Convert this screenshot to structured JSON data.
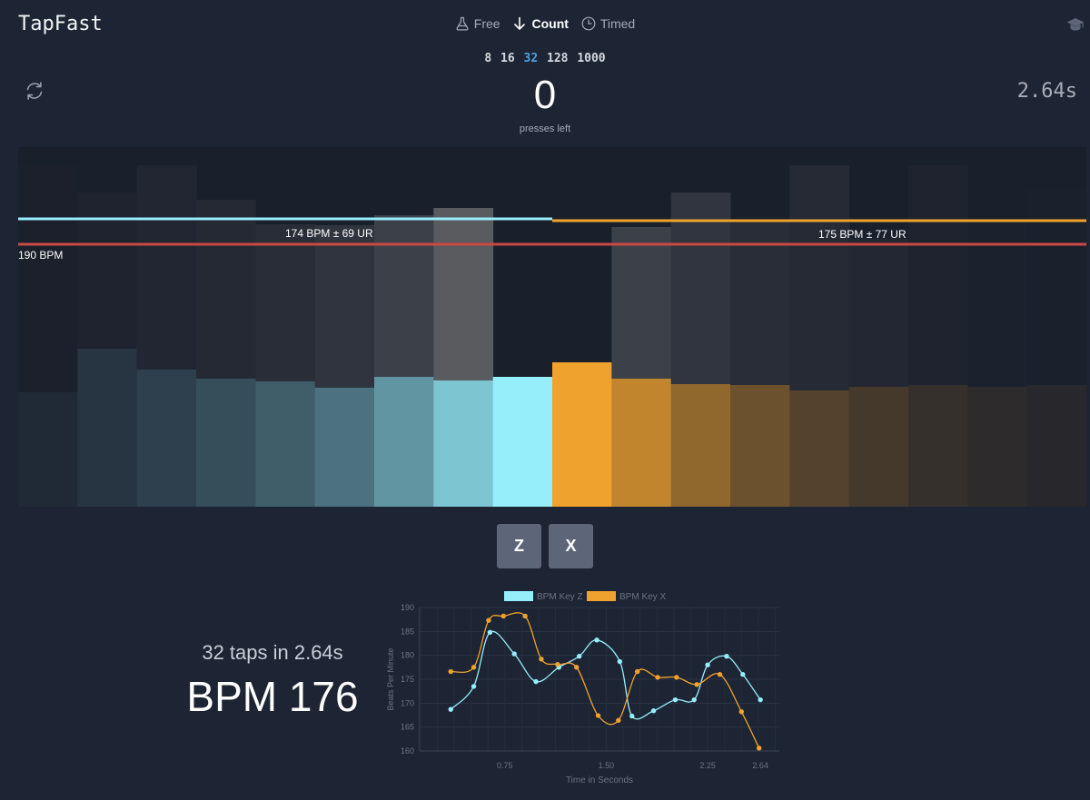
{
  "app": {
    "title": "TapFast"
  },
  "modes": [
    {
      "label": "Free",
      "icon": "flask-icon",
      "active": false
    },
    {
      "label": "Count",
      "icon": "arrow-down-icon",
      "active": true
    },
    {
      "label": "Timed",
      "icon": "clock-icon",
      "active": false
    }
  ],
  "tap_counts": {
    "options": [
      "8",
      "16",
      "32",
      "128",
      "1000"
    ],
    "selected": "32"
  },
  "counter": {
    "value": "0",
    "label": "presses left"
  },
  "timer": {
    "value": "2.64s"
  },
  "tap_visualizer": {
    "left_label": "174 BPM ± 69 UR",
    "right_label": "175 BPM ± 77 UR",
    "target_label": "190 BPM",
    "colors": {
      "key_z": "#97eefb",
      "key_x": "#f0a22e",
      "target": "#c94a44",
      "gray": "#8c8c89"
    },
    "z_bars": {
      "gray_levels": [
        0.005,
        0.04,
        0.06,
        0.09,
        0.13,
        0.19,
        0.3,
        0.55
      ],
      "key_fill_levels": [
        0.05,
        0.1,
        0.16,
        0.22,
        0.3,
        0.4,
        0.57,
        0.8,
        1.0
      ]
    },
    "x_bars": {
      "gray_levels": [
        0.55,
        0.3,
        0.2,
        0.13,
        0.1,
        0.07,
        0.04,
        0.02,
        0.01
      ],
      "key_fill_levels": [
        1.0,
        0.78,
        0.55,
        0.38,
        0.27,
        0.2,
        0.13,
        0.09,
        0.06
      ]
    }
  },
  "keys": [
    {
      "label": "Z"
    },
    {
      "label": "X"
    }
  ],
  "summary": {
    "taps_text": "32 taps in 2.64s",
    "bpm_text": "BPM 176"
  },
  "chart_data": {
    "type": "line",
    "title": "",
    "xlabel": "Time in Seconds",
    "ylabel": "Beats Per Minute",
    "xlim": [
      0.35,
      2.64
    ],
    "ylim": [
      160,
      190
    ],
    "x_ticks": [
      "0.75",
      "1.50",
      "2.25",
      "2.64"
    ],
    "y_ticks": [
      "160",
      "165",
      "170",
      "175",
      "180",
      "185",
      "190"
    ],
    "legend_position": "top",
    "grid": true,
    "series": [
      {
        "name": "BPM Key Z",
        "color": "#97eefb",
        "x": [
          0.35,
          0.52,
          0.64,
          0.82,
          0.98,
          1.15,
          1.3,
          1.43,
          1.6,
          1.69,
          1.85,
          2.01,
          2.15,
          2.25,
          2.39,
          2.51,
          2.64
        ],
        "y": [
          168.7,
          173.5,
          184.8,
          180.3,
          174.5,
          177.5,
          179.8,
          183.2,
          178.7,
          167.3,
          168.4,
          170.7,
          170.7,
          178.0,
          179.8,
          176.0,
          170.7
        ]
      },
      {
        "name": "BPM Key X",
        "color": "#f0a22e",
        "x": [
          0.35,
          0.52,
          0.63,
          0.74,
          0.9,
          1.02,
          1.14,
          1.28,
          1.44,
          1.59,
          1.73,
          1.88,
          2.02,
          2.17,
          2.34,
          2.5,
          2.63
        ],
        "y": [
          176.6,
          177.5,
          187.3,
          188.2,
          188.2,
          179.2,
          178.1,
          177.5,
          167.4,
          166.4,
          176.6,
          175.4,
          175.4,
          173.9,
          176.0,
          168.2,
          160.6
        ]
      }
    ]
  }
}
